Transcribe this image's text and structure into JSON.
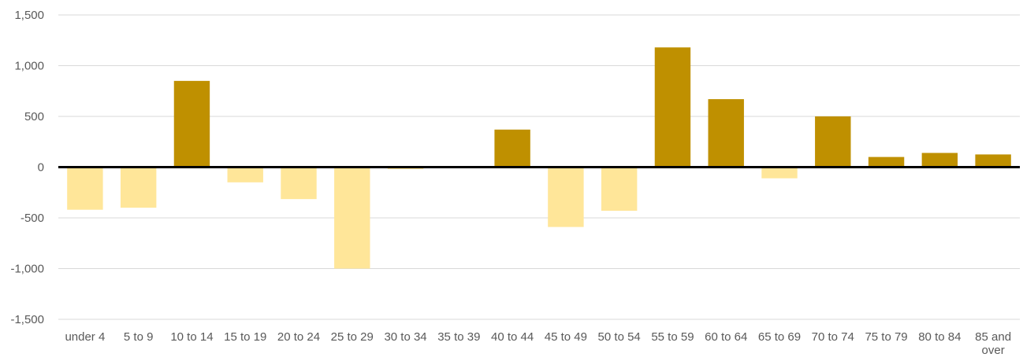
{
  "chart_data": {
    "type": "bar",
    "title": "",
    "xlabel": "",
    "ylabel": "",
    "categories": [
      "under 4",
      "5 to 9",
      "10 to 14",
      "15 to 19",
      "20 to 24",
      "25 to 29",
      "30 to 34",
      "35 to 39",
      "40 to 44",
      "45 to 49",
      "50 to 54",
      "55 to 59",
      "60 to 64",
      "65 to 69",
      "70 to 74",
      "75 to 79",
      "80 to 84",
      "85 and over"
    ],
    "values": [
      -420,
      -400,
      850,
      -150,
      -315,
      -1000,
      -20,
      5,
      370,
      -590,
      -430,
      1180,
      670,
      -110,
      500,
      100,
      140,
      125
    ],
    "ylim": [
      -1500,
      1500
    ],
    "yticks": [
      1500,
      1000,
      500,
      0,
      -500,
      -1000,
      -1500
    ],
    "ytick_labels": [
      "1,500",
      "1,000",
      "500",
      "0",
      "-500",
      "-1,000",
      "-1,500"
    ],
    "grid": true,
    "legend": "none",
    "colors": {
      "positive": "#bf9000",
      "negative": "#ffe699",
      "gridline": "#d9d9d9",
      "zero_line": "#000000",
      "label": "#595959"
    }
  }
}
